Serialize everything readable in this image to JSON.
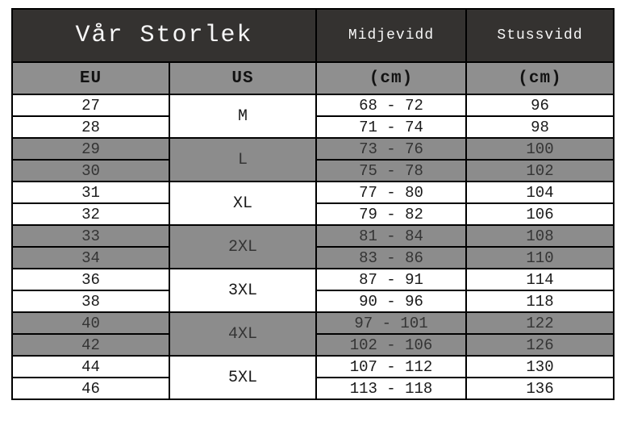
{
  "table": {
    "header": {
      "title": "Vår Storlek",
      "col_waist": "Midjevidd",
      "col_hip": "Stussvidd",
      "sub_eu": "EU",
      "sub_us": "US",
      "sub_waist_unit": "(cm)",
      "sub_hip_unit": "(cm)"
    },
    "groups": [
      {
        "us": "M",
        "shade": "white",
        "rows": [
          {
            "eu": "27",
            "waist": "68 - 72",
            "hip": "96"
          },
          {
            "eu": "28",
            "waist": "71 - 74",
            "hip": "98"
          }
        ]
      },
      {
        "us": "L",
        "shade": "gray",
        "rows": [
          {
            "eu": "29",
            "waist": "73 - 76",
            "hip": "100"
          },
          {
            "eu": "30",
            "waist": "75 - 78",
            "hip": "102"
          }
        ]
      },
      {
        "us": "XL",
        "shade": "white",
        "rows": [
          {
            "eu": "31",
            "waist": "77 - 80",
            "hip": "104"
          },
          {
            "eu": "32",
            "waist": "79 - 82",
            "hip": "106"
          }
        ]
      },
      {
        "us": "2XL",
        "shade": "gray",
        "rows": [
          {
            "eu": "33",
            "waist": "81 - 84",
            "hip": "108"
          },
          {
            "eu": "34",
            "waist": "83 - 86",
            "hip": "110"
          }
        ]
      },
      {
        "us": "3XL",
        "shade": "white",
        "rows": [
          {
            "eu": "36",
            "waist": "87 - 91",
            "hip": "114"
          },
          {
            "eu": "38",
            "waist": "90 - 96",
            "hip": "118"
          }
        ]
      },
      {
        "us": "4XL",
        "shade": "gray",
        "rows": [
          {
            "eu": "40",
            "waist": "97 - 101",
            "hip": "122"
          },
          {
            "eu": "42",
            "waist": "102 - 106",
            "hip": "126"
          }
        ]
      },
      {
        "us": "5XL",
        "shade": "white",
        "rows": [
          {
            "eu": "44",
            "waist": "107 - 112",
            "hip": "130"
          },
          {
            "eu": "46",
            "waist": "113 - 118",
            "hip": "136"
          }
        ]
      }
    ],
    "colors": {
      "header_bg": "#343230",
      "header_text": "#f7f7f7",
      "subheader_bg": "#8f8f8f",
      "row_gray_bg": "#8c8c8c",
      "row_white_bg": "#ffffff",
      "border": "#000000"
    }
  }
}
